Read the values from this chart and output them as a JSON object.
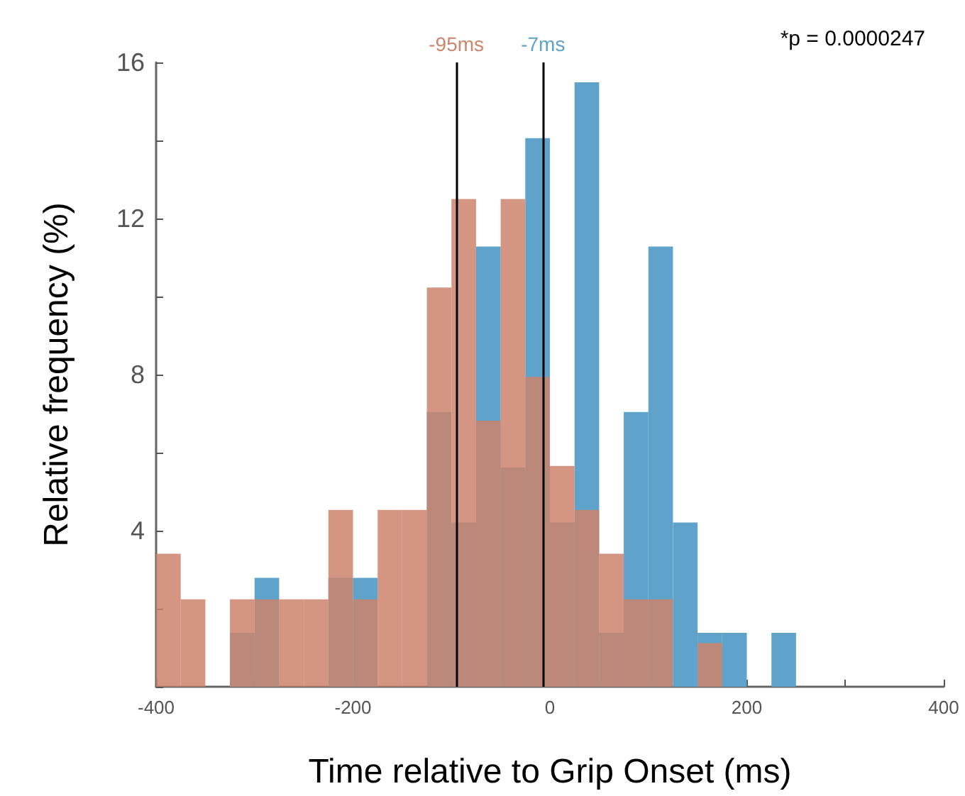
{
  "chart_data": {
    "type": "histogram",
    "xlabel": "Time relative to Grip Onset (ms)",
    "ylabel": "Relative frequency (%)",
    "bins": [
      -400,
      -375,
      -350,
      -325,
      -300,
      -275,
      -250,
      -225,
      -200,
      -175,
      -150,
      -125,
      -100,
      -75,
      -50,
      -25,
      0,
      25,
      50,
      75,
      100,
      125,
      150,
      175,
      200,
      225,
      250
    ],
    "series": [
      {
        "color": "#5fa2ca",
        "values": [
          0,
          0,
          0,
          1.38,
          2.79,
          0,
          0,
          2.79,
          2.79,
          0,
          0,
          7.04,
          4.21,
          11.28,
          5.62,
          14.06,
          4.21,
          15.49,
          1.38,
          7.04,
          11.28,
          4.21,
          1.38,
          1.38,
          0,
          1.38
        ]
      },
      {
        "color": "#cd846c",
        "values": [
          3.41,
          2.24,
          0,
          2.24,
          2.24,
          2.24,
          2.24,
          4.53,
          2.24,
          4.53,
          4.53,
          10.23,
          12.5,
          6.82,
          12.5,
          7.94,
          5.66,
          4.53,
          3.41,
          2.24,
          2.24,
          0,
          1.12,
          0,
          0,
          0
        ]
      }
    ],
    "xlim": [
      -400,
      400
    ],
    "ylim": [
      0,
      16
    ],
    "xticks": [
      -400,
      {
        "value": -300,
        "label": null
      },
      -200,
      {
        "value": -100,
        "label": null
      },
      0,
      {
        "value": 100,
        "label": null
      },
      200,
      {
        "value": 300,
        "label": null
      },
      400
    ],
    "yticks": [
      {
        "value": 0,
        "label": null
      },
      {
        "value": 2,
        "label": null
      },
      4,
      {
        "value": 6,
        "label": null
      },
      8,
      {
        "value": 10,
        "label": null
      },
      12,
      {
        "value": 14,
        "label": null
      },
      16
    ],
    "ref_lines": [
      {
        "axis": "x",
        "value": -95,
        "label": "-95ms",
        "color": "#000000"
      },
      {
        "axis": "x",
        "value": -7,
        "label": "-7ms",
        "color": "#000000"
      }
    ],
    "annotations": [
      "*p = 0.0000247"
    ],
    "grid": false
  }
}
